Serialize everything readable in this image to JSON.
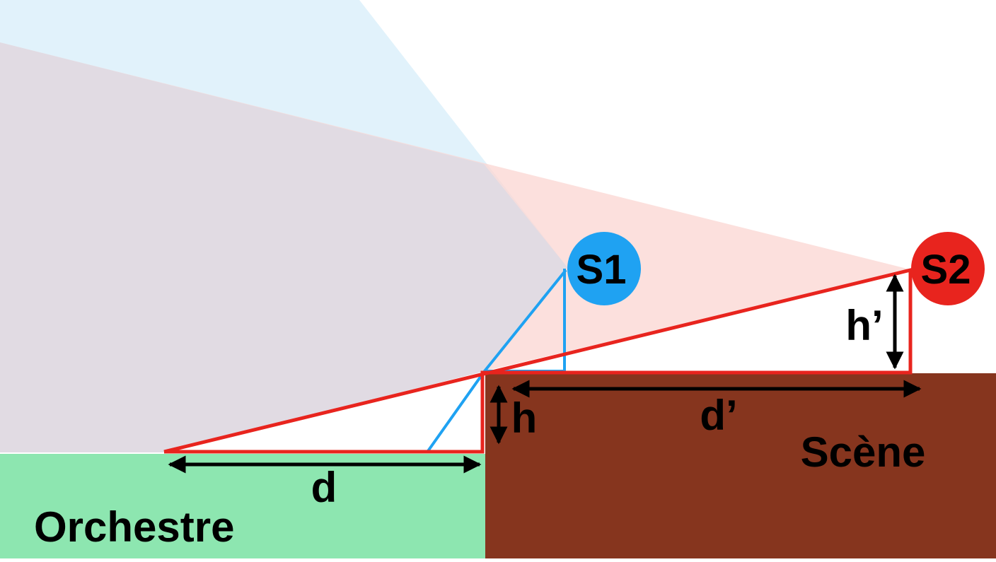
{
  "labels": {
    "s1": "S1",
    "s2": "S2",
    "h": "h",
    "h_prime": "h’",
    "d": "d",
    "d_prime": "d’",
    "scene": "Scène",
    "orchestre": "Orchestre"
  },
  "colors": {
    "background": "#ffffff",
    "orchestre_floor": "#8de6b0",
    "scene_floor": "#86351e",
    "s1_blue": "#1fa2f2",
    "s2_red": "#e8241e",
    "s1_zone": "#d7eef9",
    "s2_zone": "#fbd5d2",
    "overlap_zone": "#e1dbe3",
    "text": "#000000"
  },
  "icons": {
    "dimension_arrows": "double-headed-arrow"
  }
}
